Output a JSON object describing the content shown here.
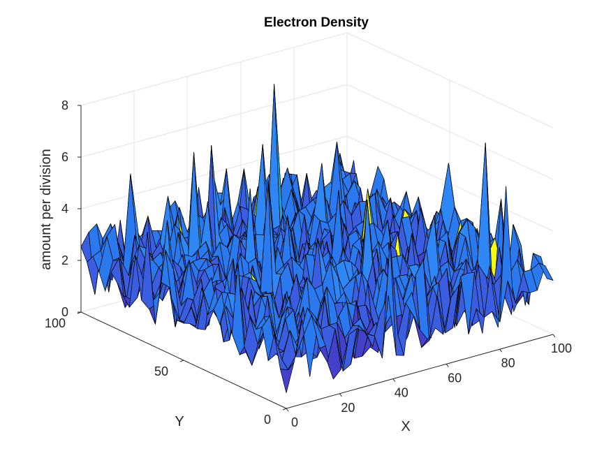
{
  "chart_data": {
    "type": "surface",
    "title": "Electron Density",
    "xlabel": "X",
    "ylabel": "Y",
    "zlabel": "amount per division",
    "xlim": [
      0,
      100
    ],
    "ylim": [
      0,
      100
    ],
    "zlim": [
      0,
      8
    ],
    "x_ticks": [
      "0",
      "20",
      "40",
      "60",
      "80",
      "100"
    ],
    "y_ticks": [
      "0",
      "50",
      "100"
    ],
    "z_ticks": [
      "0",
      "2",
      "4",
      "6",
      "8"
    ],
    "grid": true,
    "colormap": "parula",
    "colors": {
      "low": "#3e26a8",
      "mid": "#2e87f5",
      "high": "#35c2a8",
      "peak": "#f9fb0e",
      "edge": "#000000"
    },
    "typical_range": [
      0,
      5
    ],
    "peak_value": 7.8
  }
}
